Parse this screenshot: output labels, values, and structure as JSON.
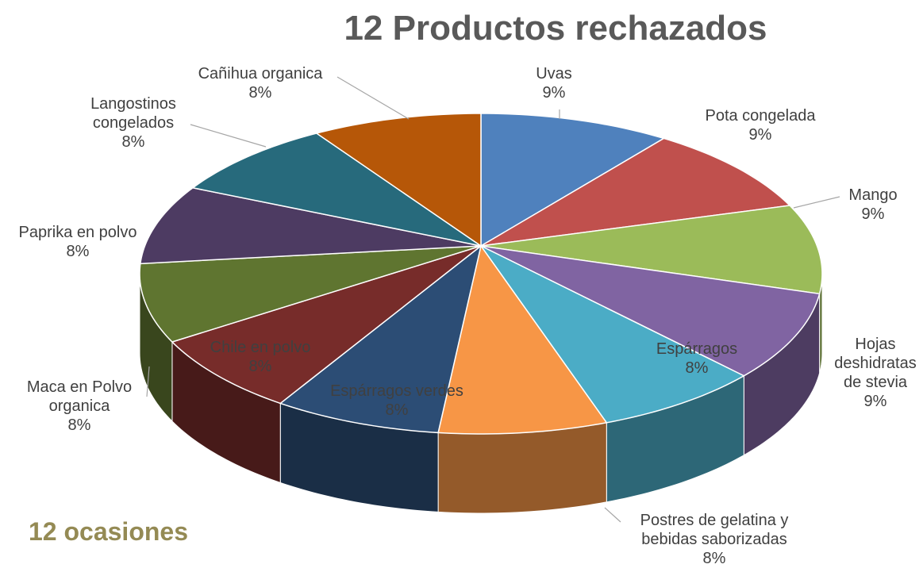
{
  "chart_data": {
    "type": "pie3d",
    "title": "12 Productos rechazados",
    "annotation": "12 ocasiones",
    "categories": [
      "Uvas",
      "Pota congelada",
      "Mango",
      "Hojas deshidratas de stevia",
      "Espárragos",
      "Postres de gelatina y bebidas saborizadas",
      "Espárragos verdes",
      "Chile en polvo",
      "Maca en Polvo organica",
      "Paprika en polvo",
      "Langostinos congelados",
      "Cañihua organica"
    ],
    "values": [
      9,
      9,
      9,
      9,
      8,
      8,
      8,
      8,
      8,
      8,
      8,
      8
    ],
    "value_labels": [
      "9%",
      "9%",
      "9%",
      "9%",
      "8%",
      "8%",
      "8%",
      "8%",
      "8%",
      "8%",
      "8%",
      "8%"
    ],
    "colors": [
      "#4f81bd",
      "#c0504d",
      "#9bbb59",
      "#8064a2",
      "#4bacc6",
      "#f79646",
      "#2c4d75",
      "#772c2a",
      "#5f7530",
      "#4d3b62",
      "#276a7c",
      "#b65708"
    ]
  }
}
